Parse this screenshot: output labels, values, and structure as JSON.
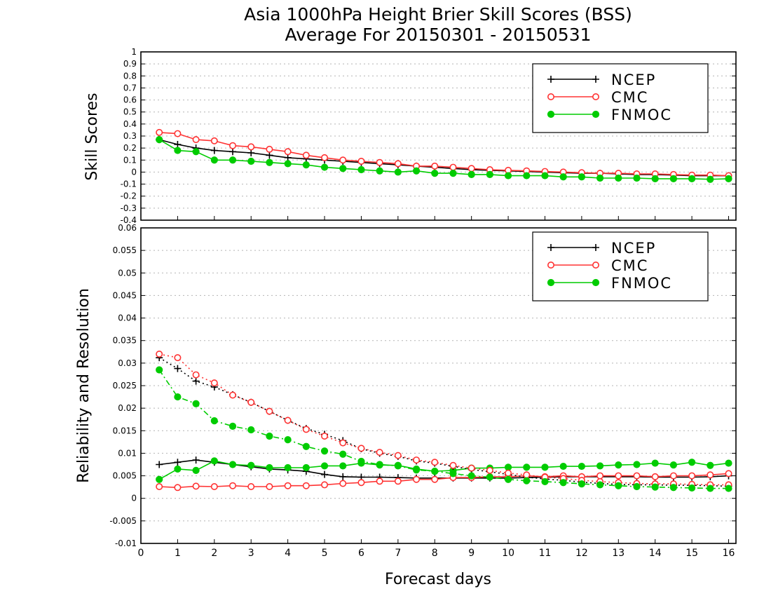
{
  "chart_data": [
    {
      "type": "line",
      "title": "Asia 1000hPa Height Brier Skill Scores (BSS)",
      "subtitle": "Average For 20150301 - 20150531",
      "ylabel": "Skill Scores",
      "xlim": [
        0,
        16.2
      ],
      "ylim": [
        -0.4,
        1
      ],
      "yticks": [
        "-0.4",
        "-0.3",
        "-0.2",
        "-0.1",
        "0",
        "0.1",
        "0.2",
        "0.3",
        "0.4",
        "0.5",
        "0.6",
        "0.7",
        "0.8",
        "0.9",
        "1"
      ],
      "grid": true,
      "legend_position": "top-right",
      "x": [
        0.5,
        1,
        1.5,
        2,
        2.5,
        3,
        3.5,
        4,
        4.5,
        5,
        5.5,
        6,
        6.5,
        7,
        7.5,
        8,
        8.5,
        9,
        9.5,
        10,
        10.5,
        11,
        11.5,
        12,
        12.5,
        13,
        13.5,
        14,
        14.5,
        15,
        15.5,
        16
      ],
      "series": [
        {
          "name": "NCEP",
          "color": "#000000",
          "marker": "plus",
          "values": [
            0.27,
            0.23,
            0.2,
            0.18,
            0.17,
            0.16,
            0.14,
            0.12,
            0.11,
            0.1,
            0.09,
            0.08,
            0.07,
            0.06,
            0.05,
            0.04,
            0.03,
            0.02,
            0.015,
            0.01,
            0.005,
            0.0,
            -0.005,
            -0.01,
            -0.01,
            -0.015,
            -0.02,
            -0.02,
            -0.025,
            -0.03,
            -0.03,
            -0.03
          ]
        },
        {
          "name": "CMC",
          "color": "#ff3333",
          "marker": "open-circle",
          "values": [
            0.33,
            0.32,
            0.27,
            0.26,
            0.22,
            0.21,
            0.19,
            0.17,
            0.14,
            0.12,
            0.1,
            0.09,
            0.08,
            0.07,
            0.05,
            0.05,
            0.04,
            0.03,
            0.02,
            0.015,
            0.01,
            0.005,
            0.0,
            -0.005,
            -0.01,
            -0.01,
            -0.015,
            -0.015,
            -0.02,
            -0.025,
            -0.025,
            -0.03
          ]
        },
        {
          "name": "FNMOC",
          "color": "#00cc00",
          "marker": "filled-circle",
          "values": [
            0.27,
            0.18,
            0.17,
            0.1,
            0.1,
            0.09,
            0.08,
            0.07,
            0.06,
            0.04,
            0.03,
            0.02,
            0.01,
            0.0,
            0.01,
            -0.01,
            -0.01,
            -0.02,
            -0.02,
            -0.03,
            -0.03,
            -0.03,
            -0.04,
            -0.04,
            -0.05,
            -0.05,
            -0.05,
            -0.055,
            -0.055,
            -0.055,
            -0.06,
            -0.055
          ]
        }
      ]
    },
    {
      "type": "line",
      "ylabel": "Reliability and Resolution",
      "xlabel": "Forecast days",
      "xlim": [
        0,
        16.2
      ],
      "ylim": [
        -0.01,
        0.06
      ],
      "xticks": [
        "0",
        "1",
        "2",
        "3",
        "4",
        "5",
        "6",
        "7",
        "8",
        "9",
        "10",
        "11",
        "12",
        "13",
        "14",
        "15",
        "16"
      ],
      "yticks": [
        "-0.01",
        "-0.005",
        "0",
        "0.005",
        "0.01",
        "0.015",
        "0.02",
        "0.025",
        "0.03",
        "0.035",
        "0.04",
        "0.045",
        "0.05",
        "0.055",
        "0.06"
      ],
      "grid": true,
      "legend_position": "top-right",
      "x": [
        0.5,
        1,
        1.5,
        2,
        2.5,
        3,
        3.5,
        4,
        4.5,
        5,
        5.5,
        6,
        6.5,
        7,
        7.5,
        8,
        8.5,
        9,
        9.5,
        10,
        10.5,
        11,
        11.5,
        12,
        12.5,
        13,
        13.5,
        14,
        14.5,
        15,
        15.5,
        16
      ],
      "series": [
        {
          "name": "NCEP",
          "color": "#000000",
          "marker": "plus",
          "style": "solid",
          "values": [
            0.0075,
            0.008,
            0.0085,
            0.008,
            0.0075,
            0.007,
            0.0065,
            0.0063,
            0.006,
            0.0053,
            0.0048,
            0.0047,
            0.0047,
            0.0046,
            0.0045,
            0.0045,
            0.0045,
            0.0045,
            0.0045,
            0.0045,
            0.0046,
            0.0047,
            0.0048,
            0.0048,
            0.0048,
            0.0048,
            0.0048,
            0.0047,
            0.0047,
            0.0047,
            0.0048,
            0.005
          ]
        },
        {
          "name": "CMC",
          "color": "#ff3333",
          "marker": "open-circle",
          "style": "solid",
          "values": [
            0.0026,
            0.0024,
            0.0027,
            0.0026,
            0.0028,
            0.0026,
            0.0026,
            0.0028,
            0.0028,
            0.003,
            0.0033,
            0.0035,
            0.0038,
            0.0038,
            0.0042,
            0.0042,
            0.0046,
            0.0046,
            0.0048,
            0.0048,
            0.005,
            0.0048,
            0.005,
            0.0048,
            0.005,
            0.005,
            0.005,
            0.0048,
            0.005,
            0.005,
            0.0052,
            0.0055
          ]
        },
        {
          "name": "FNMOC",
          "color": "#00cc00",
          "marker": "filled-circle",
          "style": "solid",
          "values": [
            0.0042,
            0.0065,
            0.0062,
            0.0083,
            0.0075,
            0.0073,
            0.0068,
            0.0068,
            0.0068,
            0.0072,
            0.0072,
            0.0078,
            0.0074,
            0.0073,
            0.0065,
            0.006,
            0.0062,
            0.0067,
            0.0067,
            0.0069,
            0.0069,
            0.0069,
            0.0071,
            0.0071,
            0.0072,
            0.0074,
            0.0075,
            0.0078,
            0.0074,
            0.008,
            0.0073,
            0.0078
          ]
        },
        {
          "name": "NCEP",
          "color": "#000000",
          "marker": "plus",
          "style": "dotted",
          "values": [
            0.0312,
            0.0288,
            0.026,
            0.0247,
            0.023,
            0.0213,
            0.0193,
            0.0173,
            0.0155,
            0.0142,
            0.0128,
            0.011,
            0.01,
            0.0093,
            0.0083,
            0.0078,
            0.0071,
            0.0064,
            0.0059,
            0.0053,
            0.0047,
            0.0043,
            0.004,
            0.0036,
            0.0033,
            0.0031,
            0.003,
            0.003,
            0.0029,
            0.0029,
            0.0028,
            0.0027
          ]
        },
        {
          "name": "CMC",
          "color": "#ff3333",
          "marker": "open-circle",
          "style": "dotted",
          "values": [
            0.032,
            0.0312,
            0.0274,
            0.0256,
            0.0229,
            0.0213,
            0.0193,
            0.0173,
            0.0153,
            0.0138,
            0.0123,
            0.0111,
            0.0102,
            0.0095,
            0.0085,
            0.008,
            0.0073,
            0.0067,
            0.0062,
            0.0056,
            0.0052,
            0.0047,
            0.0044,
            0.004,
            0.0037,
            0.0035,
            0.0033,
            0.0032,
            0.0032,
            0.0031,
            0.003,
            0.003
          ]
        },
        {
          "name": "FNMOC",
          "color": "#00cc00",
          "marker": "filled-circle",
          "style": "dashdot",
          "values": [
            0.0285,
            0.0225,
            0.021,
            0.0172,
            0.016,
            0.0152,
            0.0138,
            0.013,
            0.0115,
            0.0105,
            0.0098,
            0.0082,
            0.0075,
            0.0072,
            0.0063,
            0.006,
            0.0055,
            0.005,
            0.0047,
            0.0042,
            0.0039,
            0.0037,
            0.0035,
            0.0032,
            0.003,
            0.0028,
            0.0026,
            0.0025,
            0.0024,
            0.0023,
            0.0022,
            0.0022
          ]
        }
      ]
    }
  ]
}
